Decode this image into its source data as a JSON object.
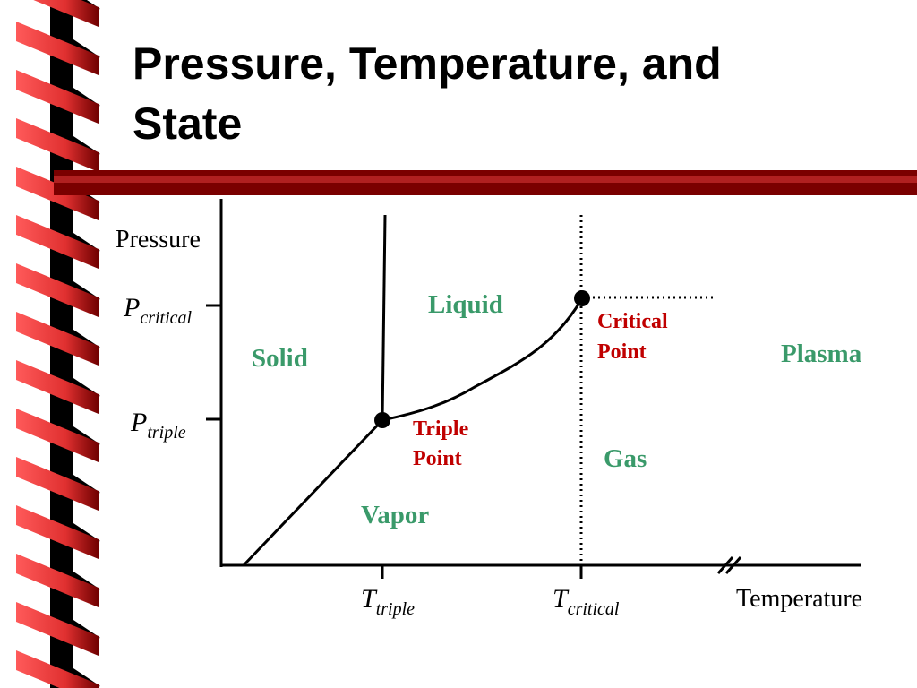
{
  "title": "Pressure, Temperature, and State",
  "diagram": {
    "y_axis_label": "Pressure",
    "x_axis_label": "Temperature",
    "y_ticks": [
      {
        "symbol": "P",
        "subscript": "critical"
      },
      {
        "symbol": "P",
        "subscript": "triple"
      }
    ],
    "x_ticks": [
      {
        "symbol": "T",
        "subscript": "triple"
      },
      {
        "symbol": "T",
        "subscript": "critical"
      }
    ],
    "regions": [
      "Solid",
      "Liquid",
      "Vapor",
      "Gas",
      "Plasma"
    ],
    "points": [
      {
        "lines": [
          "Triple",
          "Point"
        ]
      },
      {
        "lines": [
          "Critical",
          "Point"
        ]
      }
    ]
  }
}
